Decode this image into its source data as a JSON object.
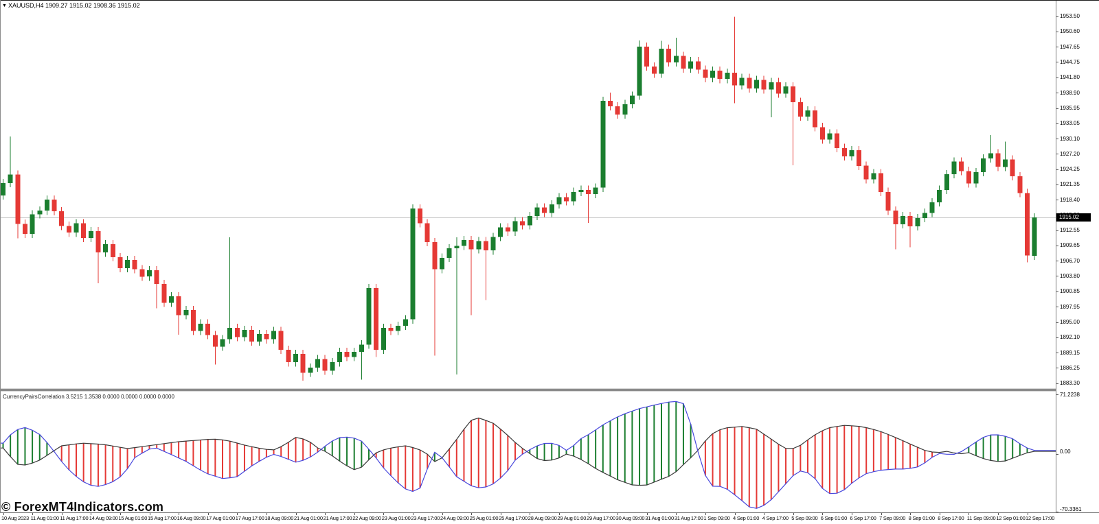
{
  "header": {
    "title_overlay": "XAUUSD,H4  1909.27 1915.02 1908.36 1915.02",
    "dropdown_icon": "symbol-dropdown"
  },
  "watermark": "© ForexMT4Indicators.com",
  "price_axis": {
    "labels": [
      "1953.50",
      "1950.60",
      "1947.65",
      "1944.75",
      "1941.80",
      "1938.90",
      "1935.95",
      "1933.05",
      "1930.10",
      "1927.20",
      "1924.25",
      "1921.35",
      "1918.40",
      "1915.50",
      "1912.55",
      "1909.65",
      "1906.70",
      "1903.80",
      "1900.85",
      "1897.95",
      "1895.00",
      "1892.10",
      "1889.15",
      "1886.25",
      "1883.30"
    ],
    "current_price": "1915.02"
  },
  "time_axis": {
    "labels": [
      "10 Aug 2023",
      "11 Aug 01:00",
      "11 Aug 17:00",
      "14 Aug 09:00",
      "15 Aug 01:00",
      "15 Aug 17:00",
      "16 Aug 09:00",
      "17 Aug 01:00",
      "17 Aug 17:00",
      "18 Aug 09:00",
      "21 Aug 01:00",
      "21 Aug 17:00",
      "22 Aug 09:00",
      "23 Aug 01:00",
      "23 Aug 17:00",
      "24 Aug 09:00",
      "25 Aug 01:00",
      "25 Aug 17:00",
      "28 Aug 09:00",
      "29 Aug 01:00",
      "29 Aug 17:00",
      "30 Aug 09:00",
      "31 Aug 01:00",
      "31 Aug 17:00",
      "1 Sep 09:00",
      "4 Sep 01:00",
      "4 Sep 17:00",
      "5 Sep 09:00",
      "6 Sep 01:00",
      "6 Sep 17:00",
      "7 Sep 09:00",
      "8 Sep 01:00",
      "8 Sep 17:00",
      "11 Sep 09:00",
      "12 Sep 01:00",
      "12 Sep 17:00"
    ]
  },
  "indicator": {
    "title": "CurrencyPairsCorrelation 3.5215 1.3538 0.0000 0.0000 0.0000 0.0000",
    "scale_max": "71.2238",
    "scale_zero": "0.00",
    "scale_min": "-70.3361"
  },
  "colors": {
    "bull": "#1b7e2f",
    "bear": "#e53935",
    "line_black": "#3a3a3a",
    "line_blue": "#4848dd",
    "stripe_green": "#1b7e2f",
    "stripe_red": "#e53935",
    "current_price_line": "#c6c6c6",
    "price_box_bg": "#000000",
    "price_box_text": "#ffffff"
  },
  "chart_data": {
    "type": "candlestick",
    "title": "XAUUSD,H4",
    "symbol": "XAUUSD",
    "timeframe": "H4",
    "grid": false,
    "price_axis_top": 1953.5,
    "price_axis_bottom": 1883.3,
    "ohlc_display": {
      "open": "1909.27",
      "high": "1915.02",
      "low": "1908.36",
      "close": "1915.02"
    },
    "bars": {
      "count": 142,
      "first_open": 1919.2,
      "closes": [
        1921.6,
        1923.2,
        1913.8,
        1911.9,
        1915.6,
        1916.3,
        1918.4,
        1916.2,
        1913.4,
        1912.1,
        1913.9,
        1911.1,
        1912.4,
        1908.3,
        1909.9,
        1907.4,
        1905.3,
        1906.9,
        1905.1,
        1903.7,
        1904.9,
        1902.3,
        1898.7,
        1899.9,
        1896.3,
        1897.3,
        1893.3,
        1894.7,
        1892.5,
        1890.3,
        1891.7,
        1893.9,
        1892.1,
        1893.5,
        1891.3,
        1892.7,
        1891.7,
        1893.3,
        1889.7,
        1887.3,
        1888.9,
        1885.3,
        1886.3,
        1887.9,
        1885.7,
        1887.3,
        1889.3,
        1888.3,
        1889.3,
        1890.7,
        1901.5,
        1889.7,
        1893.9,
        1893.3,
        1894.3,
        1895.5,
        1916.7,
        1913.9,
        1910.3,
        1905.1,
        1907.3,
        1909.1,
        1909.6,
        1910.7,
        1908.9,
        1910.5,
        1908.7,
        1911.3,
        1913.1,
        1912.3,
        1914.3,
        1913.5,
        1915.3,
        1916.9,
        1915.9,
        1917.5,
        1918.9,
        1918.1,
        1919.9,
        1920.3,
        1919.5,
        1920.7,
        1937.3,
        1936.3,
        1934.7,
        1936.7,
        1938.3,
        1947.7,
        1943.9,
        1942.5,
        1947.3,
        1944.7,
        1945.9,
        1943.5,
        1944.9,
        1943.3,
        1941.7,
        1943.1,
        1941.5,
        1942.7,
        1940.3,
        1941.7,
        1939.7,
        1941.3,
        1939.5,
        1940.9,
        1938.7,
        1940.1,
        1937.1,
        1934.3,
        1935.5,
        1932.3,
        1929.9,
        1931.1,
        1928.3,
        1926.7,
        1927.9,
        1924.9,
        1922.3,
        1923.5,
        1919.9,
        1916.3,
        1913.7,
        1915.3,
        1913.3,
        1914.9,
        1915.9,
        1917.9,
        1920.3,
        1923.3,
        1925.7,
        1923.9,
        1921.5,
        1923.7,
        1926.3,
        1927.3,
        1924.7,
        1926.1,
        1922.9,
        1919.7,
        1907.7,
        1915.0
      ],
      "wick_overrides": {
        "1": {
          "h": 1930.5
        },
        "2": {
          "l": 1911.0
        },
        "13": {
          "l": 1902.4
        },
        "21": {
          "l": 1897.6
        },
        "24": {
          "l": 1892.6
        },
        "29": {
          "l": 1886.9
        },
        "31": {
          "h": 1911.2
        },
        "41": {
          "l": 1883.8
        },
        "49": {
          "l": 1884.0
        },
        "51": {
          "l": 1888.3
        },
        "59": {
          "l": 1888.6
        },
        "62": {
          "h": 1911.2,
          "l": 1885.0
        },
        "64": {
          "l": 1896.3
        },
        "66": {
          "l": 1899.2
        },
        "80": {
          "l": 1914.0
        },
        "83": {
          "h": 1938.9
        },
        "87": {
          "h": 1948.9
        },
        "90": {
          "h": 1948.8
        },
        "92": {
          "h": 1949.4
        },
        "100": {
          "h": 1953.4,
          "l": 1936.9
        },
        "105": {
          "l": 1934.2
        },
        "108": {
          "l": 1925.0
        },
        "122": {
          "l": 1908.9
        },
        "124": {
          "l": 1909.3
        },
        "135": {
          "h": 1930.8
        },
        "137": {
          "h": 1929.5
        },
        "140": {
          "l": 1906.4
        },
        "141": {
          "l": 1906.9
        }
      }
    },
    "indicator_series": {
      "name": "CurrencyPairsCorrelation",
      "values_display": [
        "3.5215",
        "1.3538",
        "0.0000",
        "0.0000",
        "0.0000",
        "0.0000"
      ],
      "range_max": 71.2238,
      "range_min": -70.3361,
      "fill_rule": "green stripes where blue line above black line, red stripes where black above blue",
      "black_anchors": [
        [
          0,
          4
        ],
        [
          1.9,
          -16
        ],
        [
          3.3,
          -17
        ],
        [
          5.2,
          -10
        ],
        [
          6.5,
          -2
        ],
        [
          8,
          6.7
        ],
        [
          10.8,
          10
        ],
        [
          13.7,
          8.4
        ],
        [
          17,
          3.4
        ],
        [
          18.4,
          5
        ],
        [
          21.2,
          8.4
        ],
        [
          24,
          11.8
        ],
        [
          28.7,
          15.1
        ],
        [
          30.6,
          13.4
        ],
        [
          33.4,
          6.7
        ],
        [
          35.7,
          2.5
        ],
        [
          37.1,
          1.7
        ],
        [
          38.5,
          8
        ],
        [
          40.1,
          17.6
        ],
        [
          41.7,
          13.4
        ],
        [
          42.8,
          5
        ],
        [
          44.4,
          -1.7
        ],
        [
          46.5,
          -15.1
        ],
        [
          47.9,
          -22.7
        ],
        [
          49.3,
          -18.5
        ],
        [
          50.6,
          -3.4
        ],
        [
          52.2,
          2.5
        ],
        [
          53.6,
          5
        ],
        [
          55,
          6.7
        ],
        [
          56.6,
          3.4
        ],
        [
          57.8,
          -1.7
        ],
        [
          59,
          -12.6
        ],
        [
          60,
          -8
        ],
        [
          61.5,
          8.4
        ],
        [
          63.4,
          31.9
        ],
        [
          64.4,
          42
        ],
        [
          65.3,
          40.3
        ],
        [
          67.2,
          33.6
        ],
        [
          69,
          19.3
        ],
        [
          70.5,
          6.7
        ],
        [
          71.6,
          0
        ],
        [
          72.8,
          -8.4
        ],
        [
          74.2,
          -11.8
        ],
        [
          75.6,
          -10
        ],
        [
          77.2,
          -2.5
        ],
        [
          79.4,
          -11.8
        ],
        [
          81.3,
          -22.7
        ],
        [
          84.1,
          -35.3
        ],
        [
          86,
          -41.2
        ],
        [
          87.8,
          -42
        ],
        [
          89.7,
          -35.3
        ],
        [
          91.6,
          -28.6
        ],
        [
          93.5,
          -11.8
        ],
        [
          94.6,
          -3.4
        ],
        [
          95.8,
          10.9
        ],
        [
          97.2,
          23.5
        ],
        [
          98.6,
          28.6
        ],
        [
          101,
          30.3
        ],
        [
          102.9,
          27.7
        ],
        [
          104.7,
          16.8
        ],
        [
          106.6,
          5
        ],
        [
          107.5,
          1.7
        ],
        [
          108.9,
          6.7
        ],
        [
          110.8,
          19.3
        ],
        [
          112.7,
          28.6
        ],
        [
          115.1,
          31.9
        ],
        [
          117.4,
          30.3
        ],
        [
          119.7,
          25.2
        ],
        [
          121.6,
          18.5
        ],
        [
          123.5,
          10.9
        ],
        [
          125.4,
          3.4
        ],
        [
          126.3,
          0
        ],
        [
          127.7,
          -1.7
        ],
        [
          129.1,
          0
        ],
        [
          130.6,
          -3.4
        ],
        [
          132,
          -1.7
        ],
        [
          132.9,
          -5
        ],
        [
          134.3,
          -10
        ],
        [
          135.7,
          -12.6
        ],
        [
          137.1,
          -11.8
        ],
        [
          138.5,
          -6.7
        ],
        [
          139.9,
          -2
        ],
        [
          141,
          0
        ]
      ],
      "blue_anchors": [
        [
          0,
          10
        ],
        [
          1.5,
          25.2
        ],
        [
          2.9,
          29.4
        ],
        [
          4.7,
          23.5
        ],
        [
          6.5,
          6
        ],
        [
          7.6,
          -8.4
        ],
        [
          9.4,
          -26.9
        ],
        [
          11.3,
          -39.5
        ],
        [
          12.7,
          -43.7
        ],
        [
          14.6,
          -39.5
        ],
        [
          16.5,
          -28.6
        ],
        [
          17.9,
          -8.4
        ],
        [
          19.8,
          2
        ],
        [
          20.7,
          5
        ],
        [
          22.5,
          -2
        ],
        [
          24.9,
          -11.8
        ],
        [
          27.7,
          -26.9
        ],
        [
          30.1,
          -33.6
        ],
        [
          32,
          -31.1
        ],
        [
          33.9,
          -18.5
        ],
        [
          35.7,
          -8.4
        ],
        [
          37.1,
          -3.4
        ],
        [
          38.6,
          -8.4
        ],
        [
          40,
          -13.4
        ],
        [
          41.5,
          -10
        ],
        [
          43.2,
          0
        ],
        [
          44.6,
          10.9
        ],
        [
          46,
          16.8
        ],
        [
          47.5,
          17.6
        ],
        [
          48.9,
          13.4
        ],
        [
          50.6,
          -3.4
        ],
        [
          52.2,
          -22.7
        ],
        [
          53.6,
          -35.3
        ],
        [
          54.8,
          -45.4
        ],
        [
          55.9,
          -49.6
        ],
        [
          57.3,
          -43.7
        ],
        [
          58.7,
          0.8
        ],
        [
          60.1,
          -8.4
        ],
        [
          62,
          -31.1
        ],
        [
          63.9,
          -42
        ],
        [
          65.3,
          -45.4
        ],
        [
          66.7,
          -42
        ],
        [
          68.6,
          -28.6
        ],
        [
          70.2,
          -8.4
        ],
        [
          71.6,
          0
        ],
        [
          73,
          6.7
        ],
        [
          74.4,
          10.9
        ],
        [
          75.8,
          8.4
        ],
        [
          77.2,
          0
        ],
        [
          78.9,
          15.1
        ],
        [
          80.3,
          21.8
        ],
        [
          82.2,
          33.6
        ],
        [
          84.5,
          44.5
        ],
        [
          86.9,
          52.1
        ],
        [
          89.2,
          57.1
        ],
        [
          91.1,
          60.5
        ],
        [
          92.5,
          61.3
        ],
        [
          93.5,
          55.5
        ],
        [
          94.3,
          20
        ],
        [
          94.9,
          2.5
        ],
        [
          95.8,
          -26.9
        ],
        [
          97.2,
          -45.4
        ],
        [
          98.3,
          -42
        ],
        [
          99.6,
          -50.4
        ],
        [
          101,
          -60.5
        ],
        [
          102.1,
          -68.9
        ],
        [
          103.3,
          -70.3
        ],
        [
          104.7,
          -62.2
        ],
        [
          106.6,
          -43.7
        ],
        [
          108.3,
          -26.9
        ],
        [
          109.4,
          -22.7
        ],
        [
          110.8,
          -31.1
        ],
        [
          112.2,
          -47.9
        ],
        [
          113.4,
          -53.8
        ],
        [
          114.9,
          -47.9
        ],
        [
          116.5,
          -35.3
        ],
        [
          118.1,
          -26.9
        ],
        [
          119.7,
          -23.5
        ],
        [
          121.6,
          -21.8
        ],
        [
          123.5,
          -21.8
        ],
        [
          125.4,
          -18.5
        ],
        [
          126.8,
          -8.4
        ],
        [
          128.2,
          -1.7
        ],
        [
          129.6,
          -5
        ],
        [
          131.1,
          0
        ],
        [
          132.5,
          8.4
        ],
        [
          133.9,
          16.8
        ],
        [
          135.3,
          21
        ],
        [
          136.7,
          19.3
        ],
        [
          138.1,
          15.1
        ],
        [
          139.5,
          6
        ],
        [
          140.5,
          2
        ],
        [
          141,
          1
        ]
      ]
    }
  }
}
